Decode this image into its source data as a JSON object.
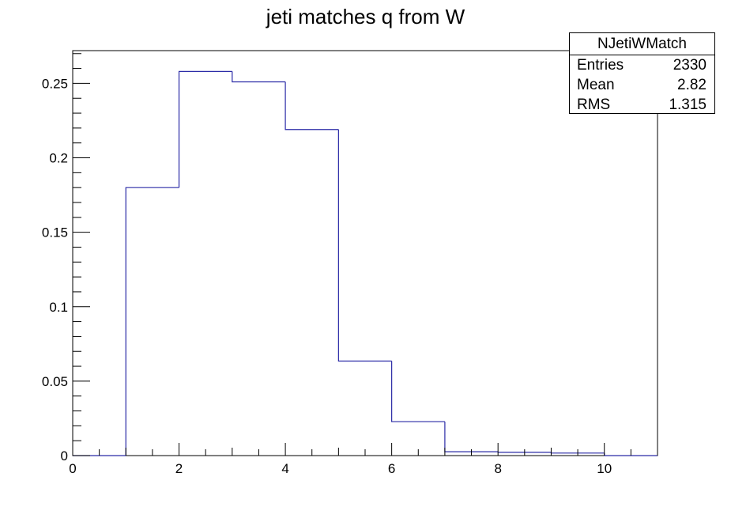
{
  "chart_data": {
    "type": "bar",
    "title": "jeti matches q from W",
    "xlabel": "",
    "ylabel": "",
    "bin_edges": [
      0,
      1,
      2,
      3,
      4,
      5,
      6,
      7,
      8,
      9,
      10,
      11
    ],
    "values": [
      0,
      0.18,
      0.258,
      0.251,
      0.219,
      0.0635,
      0.0228,
      0.0026,
      0.0022,
      0.0017,
      0
    ],
    "xlim": [
      0,
      11
    ],
    "ylim": [
      0,
      0.272
    ],
    "x_ticks": [
      0,
      2,
      4,
      6,
      8,
      10
    ],
    "x_tick_labels": [
      "0",
      "2",
      "4",
      "6",
      "8",
      "10"
    ],
    "y_ticks": [
      0,
      0.05,
      0.1,
      0.15,
      0.2,
      0.25
    ],
    "y_tick_labels": [
      "0",
      "0.05",
      "0.1",
      "0.15",
      "0.2",
      "0.25"
    ],
    "grid": false,
    "line_color": "#2a2aa6",
    "stats_box": {
      "name": "NJetiWMatch",
      "rows": [
        {
          "label": "Entries",
          "value": "2330"
        },
        {
          "label": "Mean",
          "value": "2.82"
        },
        {
          "label": "RMS",
          "value": "1.315"
        }
      ]
    }
  }
}
